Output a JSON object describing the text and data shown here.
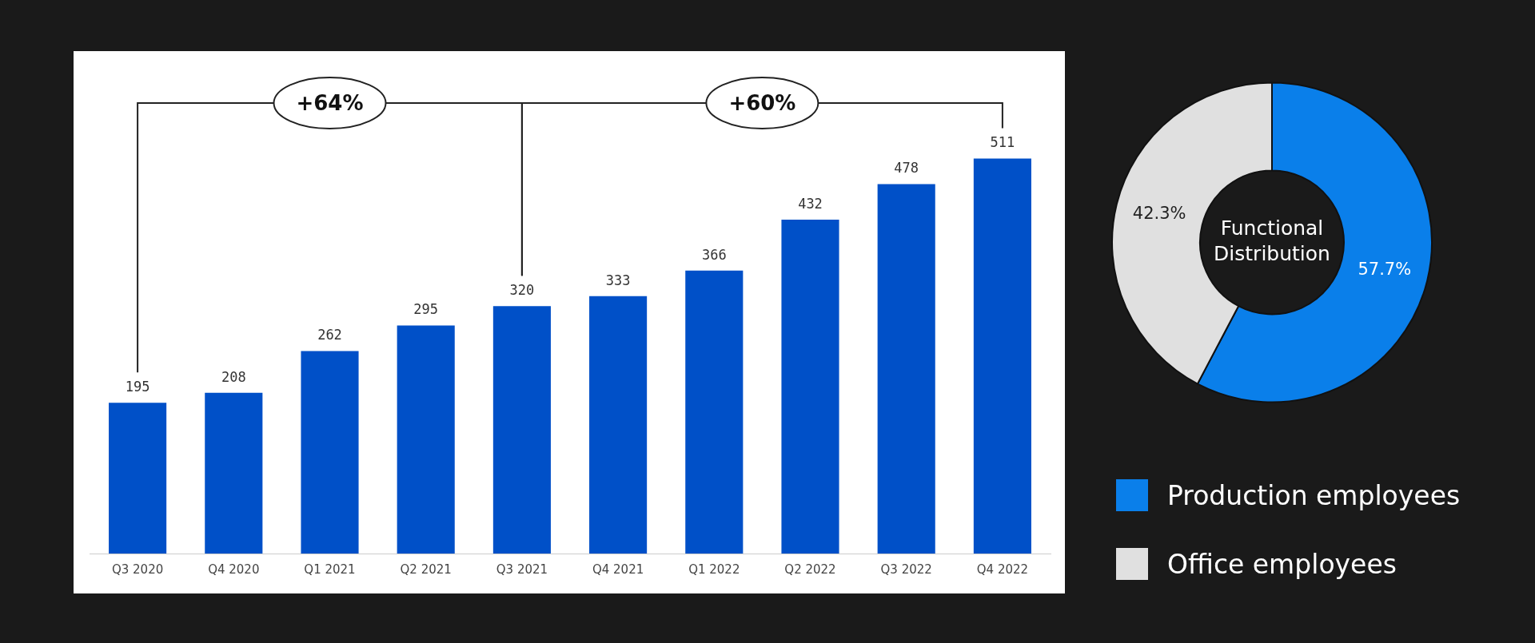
{
  "chart_data": [
    {
      "type": "bar",
      "categories": [
        "Q3 2020",
        "Q4 2020",
        "Q1 2021",
        "Q2 2021",
        "Q3 2021",
        "Q4 2021",
        "Q1 2022",
        "Q2 2022",
        "Q3 2022",
        "Q4 2022"
      ],
      "values": [
        195,
        208,
        262,
        295,
        320,
        333,
        366,
        432,
        478,
        511
      ],
      "color": "#0050c8",
      "data_labels": true,
      "annotations": [
        "+64%",
        "+60%"
      ]
    },
    {
      "type": "donut",
      "title": "Functional Distribution",
      "categories": [
        "Production employees",
        "Office employees"
      ],
      "values": [
        57.7,
        42.3
      ],
      "colors": [
        "#0a7fea",
        "#e0e0e0"
      ],
      "value_labels": [
        "57.7%",
        "42.3%"
      ],
      "legend": "bottom"
    }
  ]
}
